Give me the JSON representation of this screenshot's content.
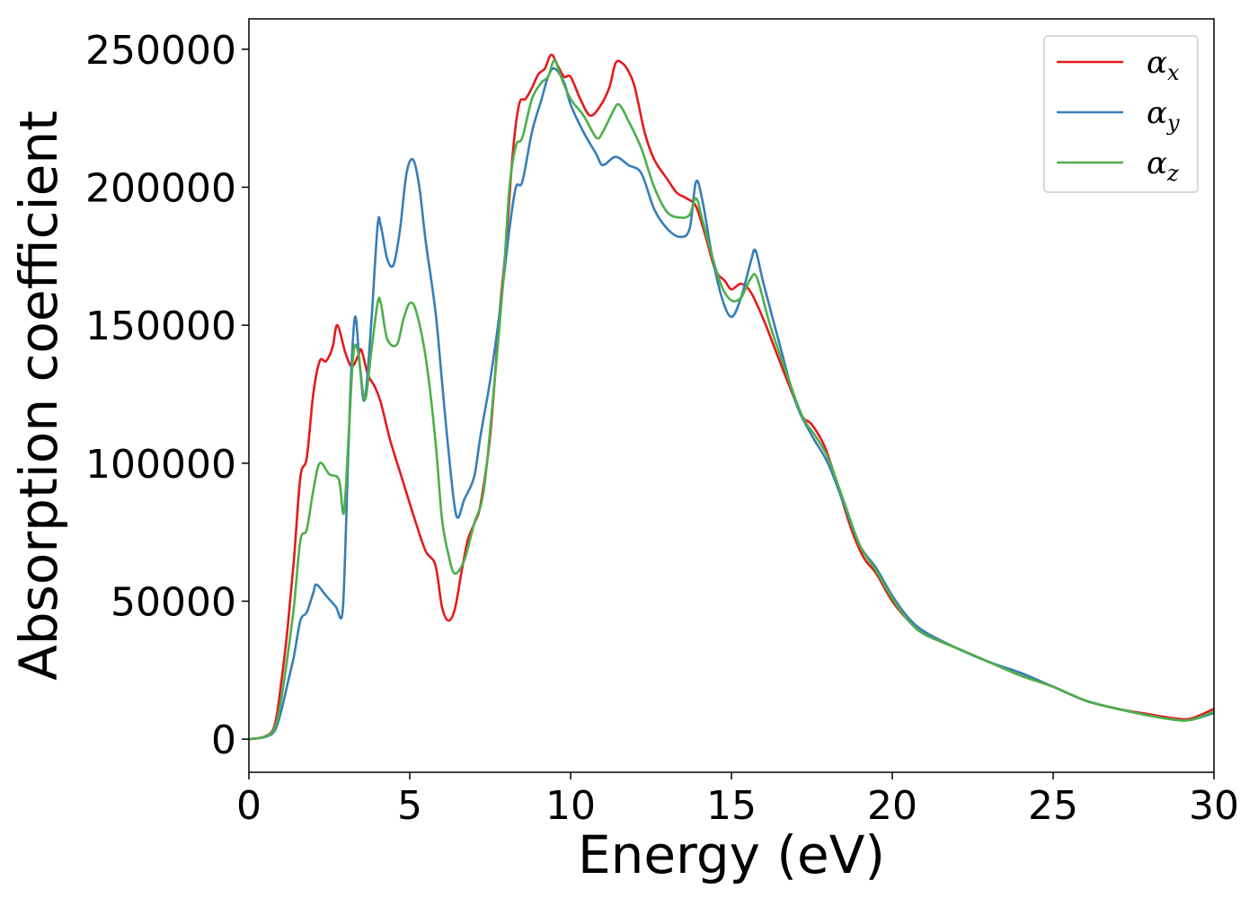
{
  "chart_data": {
    "type": "line",
    "title": "",
    "xlabel": "Energy (eV)",
    "ylabel": "Absorption coefficient",
    "xlim": [
      0,
      30
    ],
    "ylim": [
      -12000,
      261000
    ],
    "xticks": [
      0,
      5,
      10,
      15,
      20,
      25,
      30
    ],
    "yticks": [
      0,
      50000,
      100000,
      150000,
      200000,
      250000
    ],
    "xtick_labels": [
      "0",
      "5",
      "10",
      "15",
      "20",
      "25",
      "30"
    ],
    "ytick_labels": [
      "0",
      "50000",
      "100000",
      "150000",
      "200000",
      "250000"
    ],
    "grid": false,
    "legend_position": "top-right",
    "series": [
      {
        "name": "α",
        "subscript": "x",
        "color": "#e41a1c",
        "points": [
          [
            0,
            0
          ],
          [
            0.5,
            1000
          ],
          [
            0.8,
            5000
          ],
          [
            1.0,
            20000
          ],
          [
            1.2,
            40000
          ],
          [
            1.4,
            65000
          ],
          [
            1.6,
            95000
          ],
          [
            1.8,
            102000
          ],
          [
            2.0,
            125000
          ],
          [
            2.2,
            137000
          ],
          [
            2.4,
            137000
          ],
          [
            2.6,
            142000
          ],
          [
            2.75,
            150000
          ],
          [
            3.0,
            140000
          ],
          [
            3.2,
            135000
          ],
          [
            3.4,
            139000
          ],
          [
            3.5,
            141000
          ],
          [
            3.7,
            132000
          ],
          [
            3.9,
            128000
          ],
          [
            4.1,
            122000
          ],
          [
            4.4,
            108000
          ],
          [
            4.8,
            93000
          ],
          [
            5.2,
            78000
          ],
          [
            5.5,
            68000
          ],
          [
            5.8,
            63000
          ],
          [
            6.0,
            48000
          ],
          [
            6.2,
            43000
          ],
          [
            6.4,
            47000
          ],
          [
            6.6,
            60000
          ],
          [
            6.8,
            72000
          ],
          [
            7.0,
            78000
          ],
          [
            7.2,
            85000
          ],
          [
            7.5,
            110000
          ],
          [
            7.8,
            155000
          ],
          [
            8.0,
            180000
          ],
          [
            8.2,
            212000
          ],
          [
            8.4,
            230000
          ],
          [
            8.6,
            232000
          ],
          [
            8.8,
            236000
          ],
          [
            9.0,
            241000
          ],
          [
            9.2,
            243000
          ],
          [
            9.4,
            248000
          ],
          [
            9.6,
            244000
          ],
          [
            9.8,
            240000
          ],
          [
            10.0,
            240000
          ],
          [
            10.3,
            232000
          ],
          [
            10.6,
            226000
          ],
          [
            10.9,
            229000
          ],
          [
            11.2,
            236000
          ],
          [
            11.4,
            245000
          ],
          [
            11.6,
            245000
          ],
          [
            11.8,
            242000
          ],
          [
            12.0,
            236000
          ],
          [
            12.3,
            220000
          ],
          [
            12.6,
            210000
          ],
          [
            13.0,
            203000
          ],
          [
            13.3,
            198000
          ],
          [
            13.6,
            196000
          ],
          [
            13.9,
            193000
          ],
          [
            14.2,
            182000
          ],
          [
            14.5,
            170000
          ],
          [
            14.8,
            166000
          ],
          [
            15.0,
            163000
          ],
          [
            15.3,
            165000
          ],
          [
            15.6,
            162000
          ],
          [
            16.0,
            152000
          ],
          [
            16.4,
            140000
          ],
          [
            16.8,
            128000
          ],
          [
            17.2,
            117000
          ],
          [
            17.5,
            114000
          ],
          [
            17.9,
            106000
          ],
          [
            18.3,
            92000
          ],
          [
            18.7,
            77000
          ],
          [
            19.1,
            66000
          ],
          [
            19.5,
            60000
          ],
          [
            20.0,
            50000
          ],
          [
            20.5,
            43000
          ],
          [
            21,
            38000
          ],
          [
            22,
            33000
          ],
          [
            23,
            28000
          ],
          [
            24,
            23000
          ],
          [
            25,
            19000
          ],
          [
            26,
            14000
          ],
          [
            27,
            11000
          ],
          [
            28,
            9000
          ],
          [
            28.8,
            7500
          ],
          [
            29.3,
            7500
          ],
          [
            30,
            11000
          ]
        ]
      },
      {
        "name": "α",
        "subscript": "y",
        "color": "#377eb8",
        "points": [
          [
            0,
            0
          ],
          [
            0.5,
            800
          ],
          [
            0.8,
            3000
          ],
          [
            1.0,
            10000
          ],
          [
            1.2,
            20000
          ],
          [
            1.4,
            30000
          ],
          [
            1.6,
            43000
          ],
          [
            1.8,
            46000
          ],
          [
            2.0,
            53000
          ],
          [
            2.1,
            56000
          ],
          [
            2.4,
            52000
          ],
          [
            2.7,
            48000
          ],
          [
            2.9,
            45000
          ],
          [
            3.0,
            70000
          ],
          [
            3.15,
            125000
          ],
          [
            3.3,
            153000
          ],
          [
            3.45,
            135000
          ],
          [
            3.6,
            123000
          ],
          [
            3.8,
            150000
          ],
          [
            4.0,
            186000
          ],
          [
            4.1,
            186000
          ],
          [
            4.3,
            174000
          ],
          [
            4.5,
            172000
          ],
          [
            4.7,
            185000
          ],
          [
            4.9,
            205000
          ],
          [
            5.1,
            210000
          ],
          [
            5.3,
            200000
          ],
          [
            5.5,
            180000
          ],
          [
            5.8,
            155000
          ],
          [
            6.0,
            130000
          ],
          [
            6.2,
            105000
          ],
          [
            6.45,
            81000
          ],
          [
            6.7,
            87000
          ],
          [
            7.0,
            95000
          ],
          [
            7.2,
            110000
          ],
          [
            7.5,
            130000
          ],
          [
            7.8,
            155000
          ],
          [
            8.1,
            185000
          ],
          [
            8.3,
            200000
          ],
          [
            8.5,
            202000
          ],
          [
            8.8,
            220000
          ],
          [
            9.1,
            232000
          ],
          [
            9.3,
            240000
          ],
          [
            9.5,
            243000
          ],
          [
            9.8,
            238000
          ],
          [
            10.0,
            230000
          ],
          [
            10.4,
            220000
          ],
          [
            10.8,
            212000
          ],
          [
            11.0,
            208000
          ],
          [
            11.4,
            211000
          ],
          [
            11.8,
            208000
          ],
          [
            12.2,
            205000
          ],
          [
            12.6,
            192000
          ],
          [
            13.0,
            185000
          ],
          [
            13.4,
            182000
          ],
          [
            13.7,
            185000
          ],
          [
            13.9,
            202000
          ],
          [
            14.1,
            195000
          ],
          [
            14.4,
            175000
          ],
          [
            14.7,
            160000
          ],
          [
            15.0,
            153000
          ],
          [
            15.3,
            160000
          ],
          [
            15.6,
            173000
          ],
          [
            15.75,
            177000
          ],
          [
            16.0,
            165000
          ],
          [
            16.5,
            143000
          ],
          [
            17.0,
            122000
          ],
          [
            17.5,
            110000
          ],
          [
            18.0,
            100000
          ],
          [
            18.5,
            85000
          ],
          [
            19.0,
            70000
          ],
          [
            19.5,
            62000
          ],
          [
            20.0,
            52000
          ],
          [
            20.5,
            44000
          ],
          [
            21,
            39000
          ],
          [
            22,
            33000
          ],
          [
            23,
            28000
          ],
          [
            24,
            24000
          ],
          [
            25,
            19000
          ],
          [
            26,
            14000
          ],
          [
            27,
            11000
          ],
          [
            28,
            8500
          ],
          [
            28.8,
            7000
          ],
          [
            29.3,
            7000
          ],
          [
            30,
            9500
          ]
        ]
      },
      {
        "name": "α",
        "subscript": "z",
        "color": "#4daf4a",
        "points": [
          [
            0,
            0
          ],
          [
            0.5,
            900
          ],
          [
            0.8,
            4000
          ],
          [
            1.0,
            14000
          ],
          [
            1.2,
            30000
          ],
          [
            1.4,
            48000
          ],
          [
            1.6,
            72000
          ],
          [
            1.8,
            76000
          ],
          [
            2.0,
            90000
          ],
          [
            2.2,
            100000
          ],
          [
            2.5,
            96000
          ],
          [
            2.8,
            94000
          ],
          [
            2.95,
            82000
          ],
          [
            3.1,
            110000
          ],
          [
            3.25,
            140000
          ],
          [
            3.4,
            140000
          ],
          [
            3.6,
            123000
          ],
          [
            3.8,
            140000
          ],
          [
            4.0,
            158000
          ],
          [
            4.1,
            158000
          ],
          [
            4.3,
            145000
          ],
          [
            4.6,
            143000
          ],
          [
            4.8,
            152000
          ],
          [
            5.0,
            158000
          ],
          [
            5.2,
            155000
          ],
          [
            5.5,
            138000
          ],
          [
            5.8,
            108000
          ],
          [
            6.0,
            80000
          ],
          [
            6.2,
            67000
          ],
          [
            6.4,
            60000
          ],
          [
            6.7,
            65000
          ],
          [
            7.0,
            78000
          ],
          [
            7.3,
            90000
          ],
          [
            7.6,
            125000
          ],
          [
            7.9,
            165000
          ],
          [
            8.1,
            200000
          ],
          [
            8.3,
            215000
          ],
          [
            8.5,
            218000
          ],
          [
            8.8,
            232000
          ],
          [
            9.1,
            238000
          ],
          [
            9.3,
            240000
          ],
          [
            9.5,
            246000
          ],
          [
            9.7,
            240000
          ],
          [
            10.0,
            232000
          ],
          [
            10.4,
            226000
          ],
          [
            10.8,
            218000
          ],
          [
            11.0,
            220000
          ],
          [
            11.3,
            227000
          ],
          [
            11.5,
            230000
          ],
          [
            11.8,
            224000
          ],
          [
            12.2,
            214000
          ],
          [
            12.6,
            200000
          ],
          [
            13.0,
            191000
          ],
          [
            13.4,
            189000
          ],
          [
            13.7,
            190000
          ],
          [
            13.9,
            196000
          ],
          [
            14.1,
            188000
          ],
          [
            14.4,
            175000
          ],
          [
            14.7,
            164000
          ],
          [
            15.0,
            159000
          ],
          [
            15.3,
            160000
          ],
          [
            15.6,
            167000
          ],
          [
            15.8,
            167000
          ],
          [
            16.2,
            150000
          ],
          [
            16.7,
            133000
          ],
          [
            17.2,
            117000
          ],
          [
            17.6,
            110000
          ],
          [
            18.0,
            102000
          ],
          [
            18.5,
            86000
          ],
          [
            19.0,
            70000
          ],
          [
            19.5,
            61000
          ],
          [
            20.0,
            51000
          ],
          [
            20.5,
            43000
          ],
          [
            21,
            38000
          ],
          [
            22,
            33000
          ],
          [
            23,
            28000
          ],
          [
            24,
            23000
          ],
          [
            25,
            19000
          ],
          [
            26,
            14000
          ],
          [
            27,
            11000
          ],
          [
            28,
            8500
          ],
          [
            28.8,
            7000
          ],
          [
            29.3,
            7000
          ],
          [
            30,
            10000
          ]
        ]
      }
    ]
  }
}
